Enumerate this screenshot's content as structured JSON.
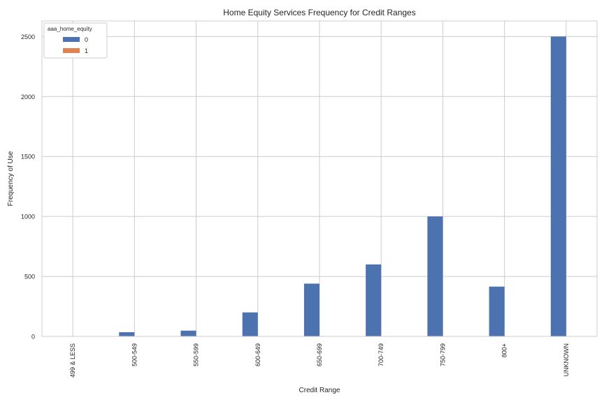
{
  "chart_data": {
    "type": "bar",
    "title": "Home Equity Services Frequency for Credit Ranges",
    "xlabel": "Credit Range",
    "ylabel": "Frequency of Use",
    "categories": [
      "499 & LESS",
      "500-549",
      "550-599",
      "600-649",
      "650-699",
      "700-749",
      "750-799",
      "800+",
      "UNKNOWN"
    ],
    "series": [
      {
        "name": "0",
        "color": "#4c72b0",
        "values": [
          2,
          35,
          48,
          200,
          440,
          600,
          1000,
          415,
          2500
        ]
      },
      {
        "name": "1",
        "color": "#dd8452",
        "values": [
          0,
          0,
          0,
          0,
          0,
          0,
          0,
          0,
          0
        ]
      }
    ],
    "ylim": [
      0,
      2630
    ],
    "yticks": [
      0,
      500,
      1000,
      1500,
      2000,
      2500
    ],
    "grid": true,
    "legend": {
      "title": "aaa_home_equity",
      "position": "top-left"
    }
  }
}
